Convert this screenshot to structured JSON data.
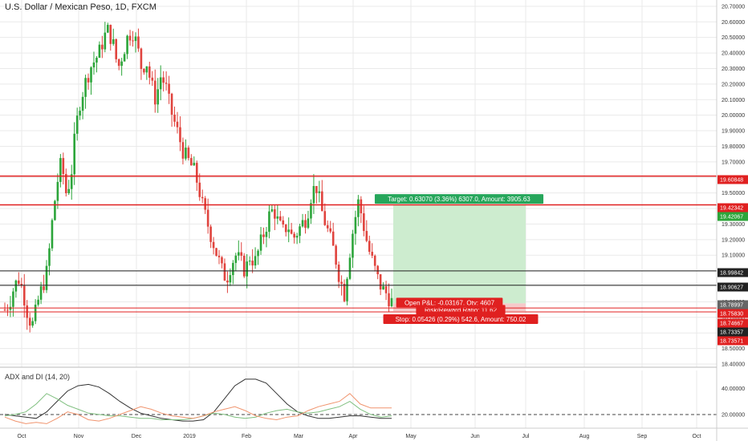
{
  "header": {
    "title": "U.S. Dollar / Mexican Peso, 1D, FXCM"
  },
  "indicator": {
    "title": "ADX and DI (14, 20)"
  },
  "colors": {
    "up": "#2ca53a",
    "down": "#e0443e",
    "level_red": "#e02020",
    "level_black": "#222222",
    "target_fill": "#cdeccf",
    "stop_fill": "#f6c9c9",
    "adx": "#333333",
    "di_plus": "#7fbf7f",
    "di_minus": "#f0946e",
    "grid": "#eaeaea",
    "axis_text": "#333333"
  },
  "chart_data": [
    {
      "type": "candlestick",
      "title": "U.S. Dollar / Mexican Peso, 1D, FXCM",
      "x_tick_labels": [
        "Oct",
        "Nov",
        "Dec",
        "2019",
        "Feb",
        "Mar",
        "Apr",
        "May",
        "Jun",
        "Jul",
        "Aug",
        "Sep",
        "Oct"
      ],
      "y_tick_labels": [
        "20.70000",
        "20.60000",
        "20.50000",
        "20.40000",
        "20.30000",
        "20.20000",
        "20.10000",
        "20.00000",
        "19.90000",
        "19.80000",
        "19.70000",
        "19.60000",
        "19.50000",
        "19.40000",
        "19.30000",
        "19.20000",
        "19.10000",
        "19.00000",
        "18.90000",
        "18.80000",
        "18.70000",
        "18.60000",
        "18.50000",
        "18.40000"
      ],
      "ylim": [
        18.4,
        20.72
      ],
      "candle_trend": [
        18.75,
        18.8,
        18.9,
        18.95,
        18.85,
        18.7,
        18.65,
        18.8,
        18.9,
        19.0,
        19.3,
        19.55,
        19.7,
        19.5,
        19.6,
        19.9,
        20.1,
        20.2,
        20.3,
        20.35,
        20.4,
        20.5,
        20.55,
        20.45,
        20.3,
        20.4,
        20.5,
        20.55,
        20.45,
        20.3,
        20.35,
        20.2,
        20.1,
        20.25,
        20.2,
        20.05,
        19.95,
        19.85,
        19.75,
        19.7,
        19.65,
        19.55,
        19.4,
        19.3,
        19.2,
        19.1,
        19.0,
        18.95,
        19.05,
        19.1,
        19.05,
        19.0,
        19.1,
        19.05,
        19.15,
        19.25,
        19.35,
        19.4,
        19.3,
        19.25,
        19.3,
        19.2,
        19.25,
        19.3,
        19.35,
        19.5,
        19.55,
        19.4,
        19.3,
        19.2,
        19.1,
        18.95,
        18.85,
        19.1,
        19.3,
        19.45,
        19.3,
        19.15,
        19.05,
        18.95,
        18.88,
        18.85,
        18.8
      ],
      "levels": [
        {
          "value": "19.60848",
          "color": "red"
        },
        {
          "value": "19.42342",
          "color": "red"
        },
        {
          "value": "19.42067",
          "color": "green"
        },
        {
          "value": "18.99842",
          "color": "black"
        },
        {
          "value": "18.90627",
          "color": "black"
        },
        {
          "value": "18.78997",
          "color": "gray"
        },
        {
          "value": "18.75830",
          "color": "red"
        },
        {
          "value": "18.74667",
          "color": "red"
        },
        {
          "value": "18.73357",
          "color": "black"
        },
        {
          "value": "18.73571",
          "color": "red"
        }
      ],
      "position": {
        "target_label": "Target: 0.63070 (3.36%) 6307.0, Amount: 3905.63",
        "pnl_label": "Open P&L: -0.03167, Qty: 4607",
        "rr_label": "Risk/Reward Ratio: 11.62",
        "stop_label": "Stop: 0.05426 (0.29%) 542.6, Amount: 750.02",
        "entry": 18.79,
        "target": 19.42,
        "stop": 18.74
      }
    },
    {
      "type": "line",
      "title": "ADX and DI (14, 20)",
      "y_tick_labels": [
        "40.00000",
        "20.00000"
      ],
      "ylim": [
        12,
        50
      ],
      "reference_line": 20,
      "series": [
        {
          "key": "adx",
          "values": [
            20,
            19,
            18,
            17,
            22,
            30,
            38,
            42,
            43,
            41,
            36,
            30,
            25,
            21,
            19,
            17,
            16,
            15,
            15,
            16,
            22,
            32,
            42,
            47,
            47,
            44,
            36,
            28,
            22,
            19,
            17,
            17,
            18,
            19,
            19,
            18,
            17,
            17
          ]
        },
        {
          "key": "di_plus",
          "values": [
            19,
            20,
            22,
            28,
            36,
            32,
            27,
            24,
            21,
            20,
            19,
            19,
            18,
            17,
            17,
            16,
            16,
            16,
            17,
            19,
            21,
            20,
            18,
            17,
            18,
            21,
            23,
            24,
            22,
            21,
            22,
            24,
            26,
            30,
            24,
            20,
            18,
            19
          ]
        },
        {
          "key": "di_minus",
          "values": [
            18,
            15,
            13,
            14,
            13,
            17,
            22,
            20,
            16,
            15,
            17,
            20,
            23,
            26,
            24,
            21,
            19,
            18,
            17,
            19,
            22,
            24,
            26,
            23,
            19,
            17,
            16,
            18,
            19,
            23,
            26,
            28,
            30,
            36,
            28,
            25,
            25,
            25
          ]
        }
      ]
    }
  ]
}
